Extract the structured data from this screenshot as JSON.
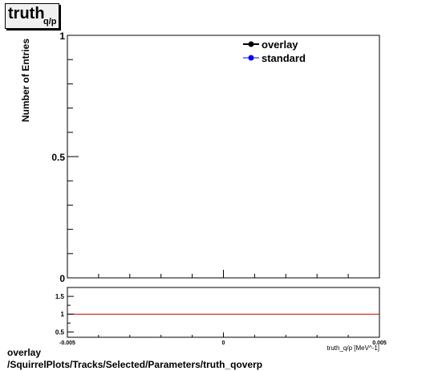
{
  "title": {
    "main": "truth",
    "sub": "q/p"
  },
  "footer": {
    "line1": "overlay",
    "line2": "/SquirrelPlots/Tracks/Selected/Parameters/truth_qoverp"
  },
  "colors": {
    "overlay": "#000000",
    "standard": "#0000ff",
    "ratio_line": "#cc0000"
  },
  "chart_data": [
    {
      "type": "line",
      "ylabel": "Number of Entries",
      "xlim": [
        -0.005,
        0.005
      ],
      "ylim": [
        0,
        1
      ],
      "y_ticks": [
        {
          "value": 0,
          "label": "0"
        },
        {
          "value": 0.5,
          "label": "0.5"
        },
        {
          "value": 1,
          "label": "1"
        }
      ],
      "legend_position": "top-right",
      "series": [
        {
          "name": "overlay",
          "values": []
        },
        {
          "name": "standard",
          "values": []
        }
      ]
    },
    {
      "type": "line",
      "xlabel": "truth_q/p [MeV^-1]",
      "xlim": [
        -0.005,
        0.005
      ],
      "ylim": [
        0.35,
        1.75
      ],
      "x_ticks": [
        {
          "value": -0.005,
          "label": "-0.005"
        },
        {
          "value": 0,
          "label": "0"
        },
        {
          "value": 0.005,
          "label": "0.005"
        }
      ],
      "y_ticks": [
        {
          "value": 0.5,
          "label": "0.5"
        },
        {
          "value": 1,
          "label": "1"
        },
        {
          "value": 1.5,
          "label": "1.5"
        }
      ],
      "reference_line": 1
    }
  ]
}
